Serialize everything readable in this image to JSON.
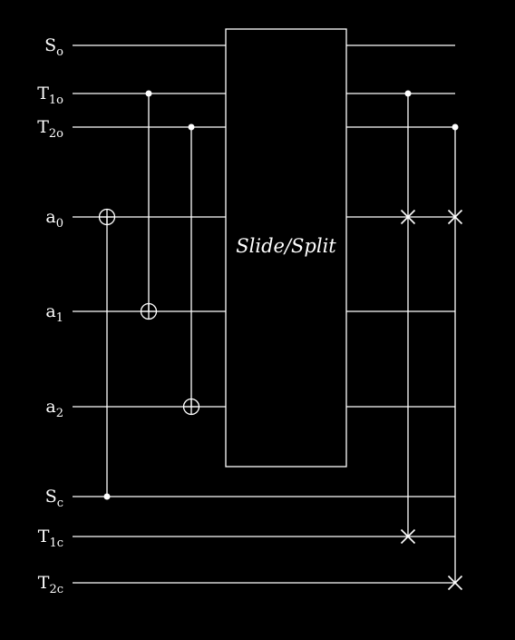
{
  "diagram": {
    "background": "#000000",
    "stroke": "#ffffff",
    "qubits": [
      {
        "id": "So",
        "base": "S",
        "sub": "o"
      },
      {
        "id": "T1o",
        "base": "T",
        "sub": "1o"
      },
      {
        "id": "T2o",
        "base": "T",
        "sub": "2o"
      },
      {
        "id": "a0",
        "base": "a",
        "sub": "0"
      },
      {
        "id": "a1",
        "base": "a",
        "sub": "1"
      },
      {
        "id": "a2",
        "base": "a",
        "sub": "2"
      },
      {
        "id": "Sc",
        "base": "S",
        "sub": "c"
      },
      {
        "id": "T1c",
        "base": "T",
        "sub": "1c"
      },
      {
        "id": "T2c",
        "base": "T",
        "sub": "2c"
      }
    ],
    "gate": {
      "label": "Slide/Split",
      "spans": [
        "So",
        "T1o",
        "T2o",
        "a0",
        "a1",
        "a2"
      ]
    },
    "cnots": [
      {
        "name": "cnot-sc-a0",
        "control": "Sc",
        "target": "a0",
        "stage": 0
      },
      {
        "name": "cnot-t1o-a1",
        "control": "T1o",
        "target": "a1",
        "stage": 1
      },
      {
        "name": "cnot-t2o-a2",
        "control": "T2o",
        "target": "a2",
        "stage": 2
      }
    ],
    "controlled_swaps": [
      {
        "name": "cswap-t1o",
        "control": "T1o",
        "swap": [
          "a0",
          "T1c"
        ],
        "stage": 4
      },
      {
        "name": "cswap-t2o",
        "control": "T2o",
        "swap": [
          "a0",
          "T2c"
        ],
        "stage": 5
      }
    ]
  }
}
